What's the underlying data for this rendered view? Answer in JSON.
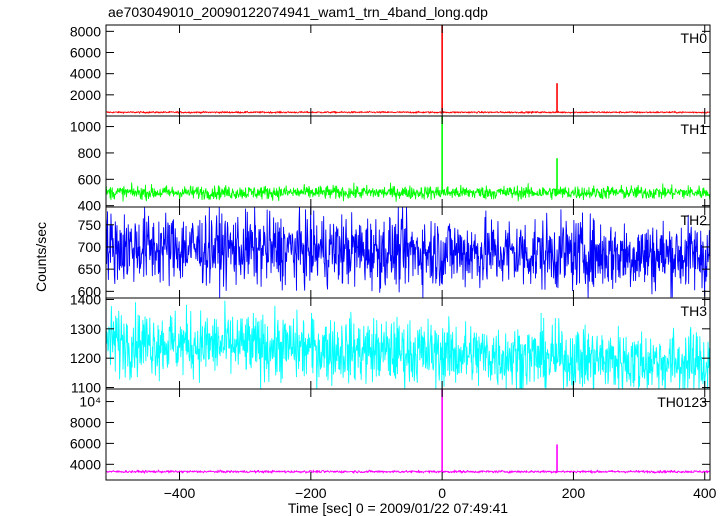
{
  "chart_data": {
    "type": "line",
    "title": "ae703049010_20090122074941_wam1_trn_4band_long.qdp",
    "xlabel": "Time [sec] 0 = 2009/01/22 07:49:41",
    "ylabel": "Counts/sec",
    "xlim": [
      -512,
      408
    ],
    "x_ticks": [
      -400,
      -200,
      0,
      200,
      400
    ],
    "x_tick_labels": [
      "−400",
      "−200",
      "0",
      "200",
      "400"
    ],
    "grid": false,
    "panels": [
      {
        "name": "TH0",
        "color": "#ff0000",
        "ylim": [
          0,
          8600
        ],
        "y_ticks": [
          2000,
          4000,
          6000,
          8000
        ],
        "y_tick_labels": [
          "2000",
          "4000",
          "6000",
          "8000"
        ],
        "baseline": 350,
        "noise": 40,
        "trend": 0,
        "spikes": [
          {
            "x": 0,
            "y": 8600
          },
          {
            "x": 175,
            "y": 3100
          }
        ]
      },
      {
        "name": "TH1",
        "color": "#00ff00",
        "ylim": [
          390,
          1080
        ],
        "y_ticks": [
          400,
          600,
          800,
          1000
        ],
        "y_tick_labels": [
          "400",
          "600",
          "800",
          "1000"
        ],
        "baseline": 500,
        "noise": 25,
        "trend": 0,
        "spikes": [
          {
            "x": 0,
            "y": 1080
          },
          {
            "x": 175,
            "y": 760
          }
        ]
      },
      {
        "name": "TH2",
        "color": "#0000ff",
        "ylim": [
          585,
          790
        ],
        "y_ticks": [
          600,
          650,
          700,
          750
        ],
        "y_tick_labels": [
          "600",
          "650",
          "700",
          "750"
        ],
        "baseline": 700,
        "noise": 40,
        "trend": -20,
        "spikes": []
      },
      {
        "name": "TH3",
        "color": "#00ffff",
        "ylim": [
          1095,
          1405
        ],
        "y_ticks": [
          1100,
          1200,
          1300,
          1400
        ],
        "y_tick_labels": [
          "1100",
          "1200",
          "1300",
          "1400"
        ],
        "baseline": 1260,
        "noise": 55,
        "trend": -80,
        "spikes": []
      },
      {
        "name": "TH0123",
        "color": "#ff00ff",
        "ylim": [
          2500,
          11200
        ],
        "y_ticks": [
          4000,
          6000,
          8000,
          10000
        ],
        "y_tick_labels": [
          "4000",
          "6000",
          "8000",
          "10⁴"
        ],
        "baseline": 3300,
        "noise": 60,
        "trend": 0,
        "spikes": [
          {
            "x": 0,
            "y": 11200
          },
          {
            "x": 175,
            "y": 5900
          }
        ]
      }
    ]
  }
}
